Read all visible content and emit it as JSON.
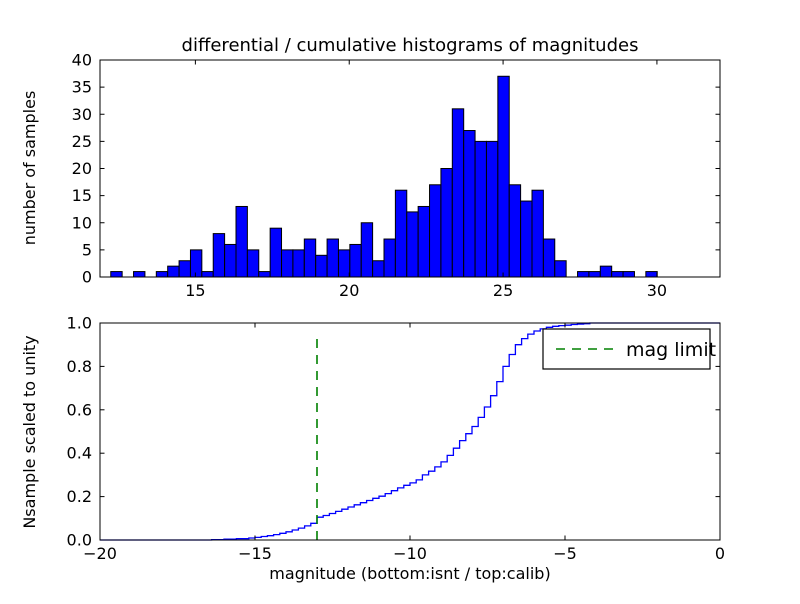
{
  "figure": {
    "title": "differential / cumulative histograms of magnitudes",
    "background": "#ffffff"
  },
  "colors": {
    "bar_fill": "#0000ff",
    "bar_edge": "#000000",
    "step_line": "#0000ff",
    "mag_limit_line": "#008000",
    "frame": "#000000",
    "text": "#000000"
  },
  "top_plot": {
    "ylabel": "number of samples",
    "xtick_labels": [
      "15",
      "20",
      "25",
      "30"
    ],
    "ytick_labels": [
      "0",
      "5",
      "10",
      "15",
      "20",
      "25",
      "30",
      "35",
      "40"
    ]
  },
  "bottom_plot": {
    "ylabel": "Nsample scaled to unity",
    "xlabel": "magnitude (bottom:isnt / top:calib)",
    "xtick_labels": [
      "−20",
      "−15",
      "−10",
      "−5",
      "0"
    ],
    "ytick_labels": [
      "0.0",
      "0.2",
      "0.4",
      "0.6",
      "0.8",
      "1.0"
    ]
  },
  "legend": {
    "label": "mag limit",
    "line_color": "#008000",
    "line_style": "dashed",
    "position": "upper right"
  },
  "chart_data": [
    {
      "type": "bar",
      "subtype": "histogram",
      "title": "differential / cumulative histograms of magnitudes",
      "xlabel": "",
      "ylabel": "number of samples",
      "xlim": [
        11.9,
        32.05
      ],
      "ylim": [
        0,
        40
      ],
      "xticks": [
        15,
        20,
        25,
        30
      ],
      "yticks": [
        0,
        5,
        10,
        15,
        20,
        25,
        30,
        35,
        40
      ],
      "grid": false,
      "bin_start": 12.25,
      "bin_width": 0.37,
      "counts": [
        1,
        0,
        1,
        0,
        1,
        2,
        3,
        5,
        1,
        8,
        6,
        13,
        5,
        1,
        9,
        5,
        5,
        7,
        4,
        7,
        5,
        6,
        10,
        3,
        7,
        16,
        12,
        13,
        17,
        20,
        31,
        27,
        25,
        25,
        37,
        17,
        14,
        16,
        7,
        3,
        0,
        1,
        1,
        2,
        1,
        1,
        0,
        1
      ]
    },
    {
      "type": "line",
      "subtype": "cumulative-step",
      "xlabel": "magnitude (bottom:isnt / top:calib)",
      "ylabel": "Nsample scaled to unity",
      "xlim": [
        -20,
        0
      ],
      "ylim": [
        0.0,
        1.0
      ],
      "xticks": [
        -20,
        -15,
        -10,
        -5,
        0
      ],
      "yticks": [
        0.0,
        0.2,
        0.4,
        0.6,
        0.8,
        1.0
      ],
      "grid": false,
      "legend_position": "upper right",
      "vline": {
        "x": -13,
        "ymin": 0.0,
        "ymax": 0.958,
        "label": "mag limit",
        "color": "#008000",
        "style": "dashed"
      },
      "step_points": [
        [
          -16.4,
          0.002
        ],
        [
          -16.0,
          0.004
        ],
        [
          -15.6,
          0.006
        ],
        [
          -15.2,
          0.009
        ],
        [
          -15.0,
          0.012
        ],
        [
          -14.8,
          0.016
        ],
        [
          -14.6,
          0.02
        ],
        [
          -14.4,
          0.025
        ],
        [
          -14.2,
          0.031
        ],
        [
          -14.0,
          0.038
        ],
        [
          -13.8,
          0.046
        ],
        [
          -13.6,
          0.055
        ],
        [
          -13.4,
          0.065
        ],
        [
          -13.2,
          0.077
        ],
        [
          -13.0,
          0.105
        ],
        [
          -12.8,
          0.113
        ],
        [
          -12.6,
          0.122
        ],
        [
          -12.4,
          0.132
        ],
        [
          -12.2,
          0.142
        ],
        [
          -12.0,
          0.152
        ],
        [
          -11.8,
          0.162
        ],
        [
          -11.6,
          0.172
        ],
        [
          -11.4,
          0.182
        ],
        [
          -11.2,
          0.192
        ],
        [
          -11.0,
          0.202
        ],
        [
          -10.8,
          0.214
        ],
        [
          -10.6,
          0.227
        ],
        [
          -10.4,
          0.24
        ],
        [
          -10.2,
          0.252
        ],
        [
          -10.0,
          0.263
        ],
        [
          -9.8,
          0.277
        ],
        [
          -9.6,
          0.3
        ],
        [
          -9.4,
          0.317
        ],
        [
          -9.2,
          0.337
        ],
        [
          -9.0,
          0.36
        ],
        [
          -8.8,
          0.39
        ],
        [
          -8.6,
          0.423
        ],
        [
          -8.4,
          0.458
        ],
        [
          -8.2,
          0.49
        ],
        [
          -8.0,
          0.523
        ],
        [
          -7.8,
          0.565
        ],
        [
          -7.6,
          0.613
        ],
        [
          -7.4,
          0.665
        ],
        [
          -7.2,
          0.73
        ],
        [
          -7.0,
          0.8
        ],
        [
          -6.8,
          0.855
        ],
        [
          -6.6,
          0.9
        ],
        [
          -6.4,
          0.928
        ],
        [
          -6.2,
          0.949
        ],
        [
          -6.0,
          0.963
        ],
        [
          -5.8,
          0.973
        ],
        [
          -5.6,
          0.98
        ],
        [
          -5.4,
          0.985
        ],
        [
          -5.2,
          0.988
        ],
        [
          -5.0,
          0.99
        ],
        [
          -4.8,
          0.993
        ],
        [
          -4.6,
          0.995
        ],
        [
          -4.4,
          0.997
        ],
        [
          -4.2,
          1.0
        ]
      ]
    }
  ]
}
